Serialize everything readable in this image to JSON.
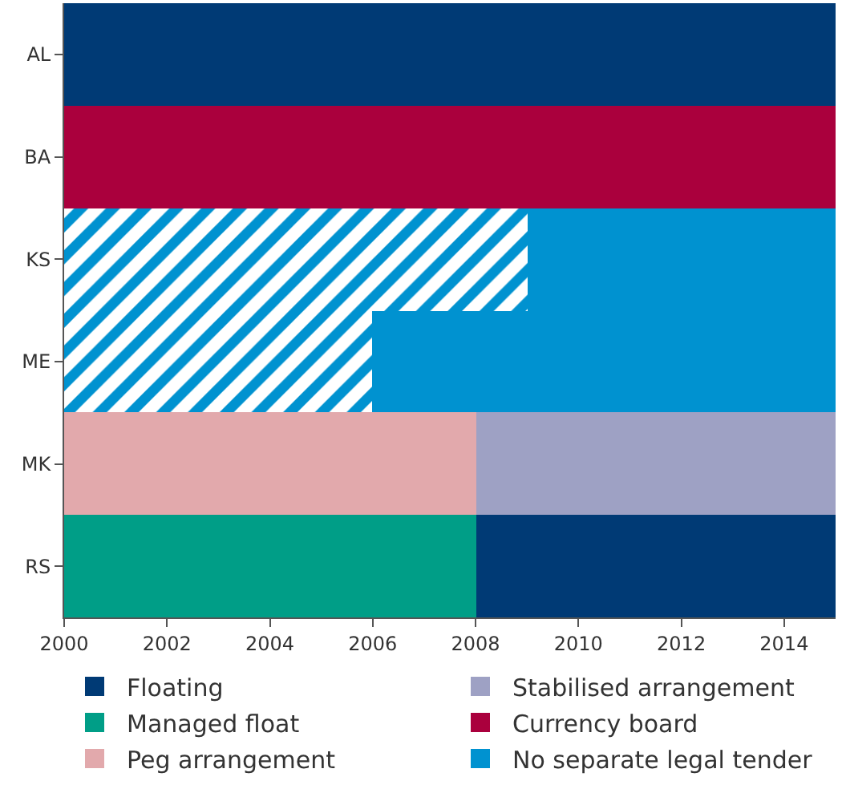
{
  "chart_data": {
    "type": "bar",
    "orientation": "horizontal",
    "categories": [
      "AL",
      "BA",
      "KS",
      "ME",
      "MK",
      "RS"
    ],
    "series": [
      {
        "name": "Floating",
        "color": "#003a75",
        "values": [
          15,
          null,
          null,
          null,
          null,
          7
        ],
        "base": [
          2000,
          null,
          null,
          null,
          null,
          2008
        ]
      },
      {
        "name": "Stabilised arrangement",
        "color": "#9ea1c4",
        "values": [
          null,
          null,
          null,
          null,
          7,
          null
        ],
        "base": [
          null,
          null,
          null,
          null,
          2008,
          null
        ]
      },
      {
        "name": "Managed float",
        "color": "#009e87",
        "values": [
          null,
          null,
          null,
          null,
          null,
          8
        ],
        "base": [
          null,
          null,
          null,
          null,
          null,
          2000
        ]
      },
      {
        "name": "Currency board",
        "color": "#aa003d",
        "values": [
          null,
          15,
          null,
          null,
          null,
          null
        ],
        "base": [
          null,
          2000,
          null,
          null,
          null,
          null
        ]
      },
      {
        "name": "Peg arrangement",
        "color": "#e2a9ac",
        "values": [
          null,
          null,
          null,
          null,
          8,
          null
        ],
        "base": [
          null,
          null,
          null,
          null,
          2000,
          null
        ]
      },
      {
        "name": "No separate legal tender",
        "color": "#0092d0",
        "values": [
          null,
          null,
          6,
          9,
          null,
          null
        ],
        "base": [
          null,
          null,
          2009,
          2006,
          null,
          null
        ]
      },
      {
        "color": "#0092d0",
        "values": [
          null,
          null,
          9,
          6,
          null,
          null
        ],
        "base": [
          null,
          null,
          2000,
          2000,
          null,
          null
        ]
      }
    ],
    "xlim": [
      2000,
      2015
    ],
    "xticks": [
      2000,
      2002,
      2004,
      2006,
      2008,
      2010,
      2012,
      2014
    ],
    "legend": "bottom"
  }
}
